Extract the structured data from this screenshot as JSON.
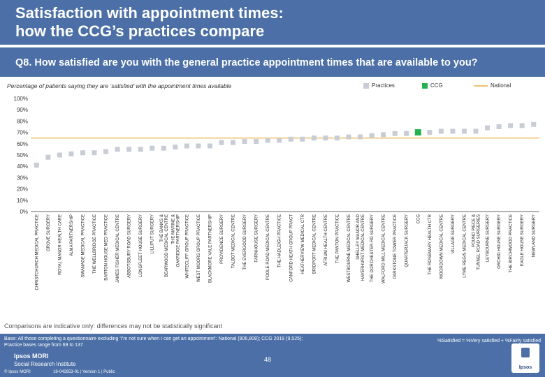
{
  "title_line1": "Satisfaction with appointment times:",
  "title_line2": "how the CCG’s practices compare",
  "question": "Q8. How satisfied are you with the general practice appointment times that are available to you?",
  "subtitle": "Percentage of patients saying they are ‘satisfied’ with the appointment times available",
  "legend": {
    "practices": "Practices",
    "ccg": "CCG",
    "national": "National"
  },
  "colors": {
    "practice": "#c8ccd4",
    "ccg": "#22b14c",
    "national": "#f0c070",
    "axis": "#333333"
  },
  "note": "Comparisons are indicative only: differences may not be statistically significant",
  "base_line1": "Base: All those completing a questionnaire excluding ‘I’m not sure when I can get an appointment’: National (806,808); CCG 2019 (9,525);",
  "base_line2": "Practice bases range from 69 to 137",
  "definition": "%Satisfied = %Very satisfied + %Fairly satisfied",
  "brand_name": "Ipsos MORI",
  "brand_sub": "Social Research Institute",
  "copyright": "© Ipsos MORI",
  "job_ref": "18-042653-01 | Version 1 | Public",
  "page_number": "48",
  "logo_label": "Ipsos",
  "chart_data": {
    "type": "scatter",
    "title": "Percentage of patients saying they are ‘satisfied’ with the appointment times available",
    "ylim": [
      0,
      100
    ],
    "yticks": [
      "0%",
      "10%",
      "20%",
      "30%",
      "40%",
      "50%",
      "60%",
      "70%",
      "80%",
      "90%",
      "100%"
    ],
    "national_value": 65,
    "ccg_category": "CCG",
    "categories": [
      "CHRISTCHURCH MEDICAL PRACTICE",
      "GROVE SURGERY",
      "ROYAL MANOR HEALTH CARE",
      "ALMA PARTNERSHIP",
      "SWANAGE MEDICAL PRACTICE",
      "THE WELLBRIDGE PRACTICE",
      "BARTON HOUSE MED PRACTICE",
      "JAMES FISHER MEDICAL CENTRE",
      "ABBOTSBURY ROAD SURGERY",
      "LONGFLEET HOUSE SURGERY",
      "LILLIPUT SURGERY",
      "THE BANKS & BEARWOOD MEDICAL CENTRE",
      "THE MARINE & OAKRIDGE PARTNERSHIP",
      "WHITECLIFF GROUP PRACTICE",
      "WEST MOORS GROUP PRACTICE",
      "BLACKMORE VALE PARTNERSHIP",
      "PROVIDENCE SURGERY",
      "TALBOT MEDICAL CENTRE",
      "THE EVERGOOD SURGERY",
      "FARNHOUSE SURGERY",
      "POOLE ROAD MEDICAL CENTRE",
      "THE HADLEIGH PRACTICE",
      "CANFORD HEATH GROUP PRACT",
      "HEATHERVIEW MEDICAL CTR",
      "BRIDPORT MEDICAL CENTRE",
      "ATRIUM HEALTH CENTRE",
      "THE PANTON PRACTICE",
      "WESTBOURNE MEDICAL CENTRE",
      "SHELLEY MANOR AND HAVERHURST MEDICAL CENTRE",
      "THE DORCHESTER RD SURGERY",
      "WALFORD MILL MEDICAL CENTRE",
      "PARKSTONE TOWER PRACTICE",
      "QUARTERJACK SURGERY",
      "CCG",
      "THE ROSEMARY HEALTH CTR",
      "MOORDOWN MEDICAL CENTRE",
      "VILLAGE SURGERY",
      "LYME REGIS MEDICAL CENTRE",
      "POUND PIECE & TUNNEL ROAD SURGERIES",
      "LEYBOURNE SURGERY",
      "ORCHID HOUSE SURGERY",
      "THE BIRCHWOOD PRACTICE",
      "EAGLE HOUSE SURGERY",
      "NEWLAND SURGERY"
    ],
    "values": [
      41,
      48,
      50,
      51,
      52,
      52,
      53,
      55,
      55,
      55,
      56,
      56,
      57,
      58,
      58,
      58,
      61,
      61,
      62,
      62,
      63,
      63,
      64,
      64,
      65,
      65,
      65,
      66,
      66,
      67,
      68,
      69,
      69,
      70,
      70,
      71,
      71,
      71,
      71,
      74,
      75,
      76,
      76,
      77
    ]
  }
}
